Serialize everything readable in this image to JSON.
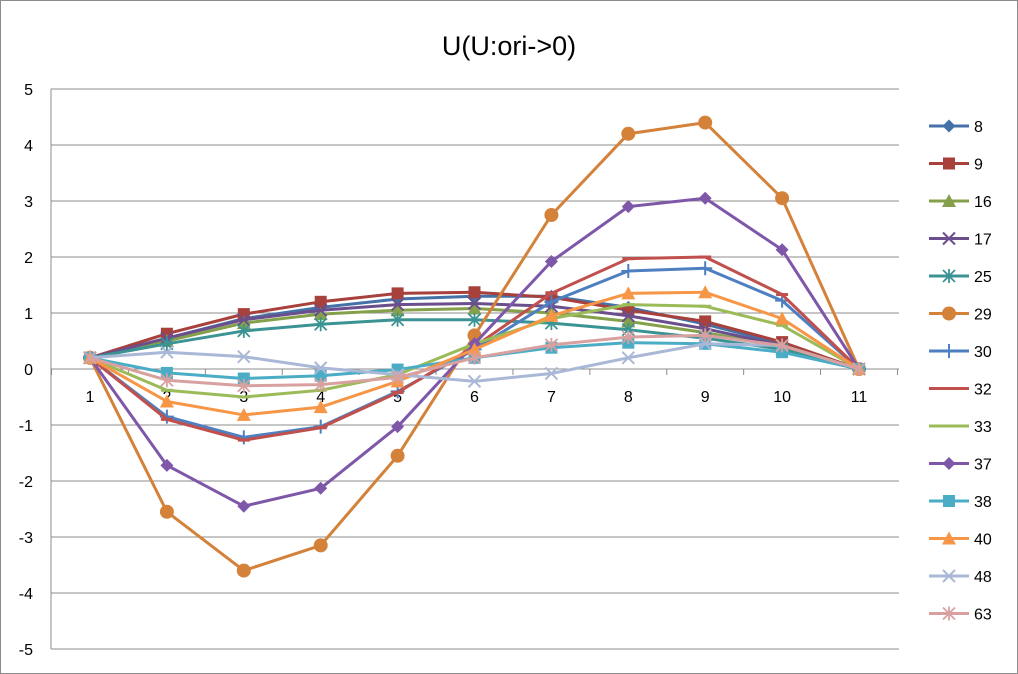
{
  "chart_data": {
    "type": "line",
    "title": "U(U:ori->0)",
    "xlabel": "",
    "ylabel": "",
    "x": [
      1,
      2,
      3,
      4,
      5,
      6,
      7,
      8,
      9,
      10,
      11
    ],
    "ylim": [
      -5,
      5
    ],
    "yticks": [
      -5,
      -4,
      -3,
      -2,
      -1,
      0,
      1,
      2,
      3,
      4,
      5
    ],
    "grid": "horizontal-major",
    "legend": "right",
    "series": [
      {
        "name": "8",
        "color": "#4472A8",
        "marker": "diamond",
        "values": [
          0.2,
          0.55,
          0.9,
          1.1,
          1.25,
          1.3,
          1.3,
          1.1,
          0.8,
          0.45,
          0.0
        ]
      },
      {
        "name": "9",
        "color": "#A8403C",
        "marker": "square",
        "values": [
          0.2,
          0.63,
          0.98,
          1.2,
          1.35,
          1.37,
          1.28,
          1.05,
          0.85,
          0.48,
          0.0
        ]
      },
      {
        "name": "16",
        "color": "#84A04A",
        "marker": "triangle",
        "values": [
          0.2,
          0.5,
          0.82,
          0.98,
          1.05,
          1.08,
          1.0,
          0.85,
          0.65,
          0.4,
          0.0
        ]
      },
      {
        "name": "17",
        "color": "#6B4E8C",
        "marker": "x",
        "values": [
          0.2,
          0.55,
          0.88,
          1.05,
          1.15,
          1.17,
          1.12,
          0.95,
          0.72,
          0.42,
          0.0
        ]
      },
      {
        "name": "25",
        "color": "#3B9394",
        "marker": "asterisk",
        "values": [
          0.2,
          0.45,
          0.68,
          0.8,
          0.88,
          0.88,
          0.82,
          0.7,
          0.55,
          0.35,
          0.0
        ]
      },
      {
        "name": "29",
        "color": "#D4813A",
        "marker": "circle",
        "values": [
          0.2,
          -2.55,
          -3.6,
          -3.15,
          -1.55,
          0.6,
          2.75,
          4.2,
          4.4,
          3.05,
          0.0
        ]
      },
      {
        "name": "30",
        "color": "#4E7FC0",
        "marker": "plus",
        "values": [
          0.2,
          -0.85,
          -1.22,
          -1.03,
          -0.4,
          0.35,
          1.2,
          1.75,
          1.8,
          1.22,
          0.0
        ]
      },
      {
        "name": "32",
        "color": "#C0504D",
        "marker": "dash",
        "values": [
          0.2,
          -0.9,
          -1.27,
          -1.05,
          -0.42,
          0.4,
          1.35,
          1.97,
          2.0,
          1.33,
          0.0
        ]
      },
      {
        "name": "33",
        "color": "#9BBB59",
        "marker": "dash",
        "values": [
          0.2,
          -0.38,
          -0.5,
          -0.38,
          -0.1,
          0.45,
          0.9,
          1.15,
          1.12,
          0.78,
          0.0
        ]
      },
      {
        "name": "37",
        "color": "#7E57A8",
        "marker": "diamond",
        "values": [
          0.2,
          -1.72,
          -2.45,
          -2.13,
          -1.03,
          0.45,
          1.92,
          2.9,
          3.05,
          2.13,
          0.0
        ]
      },
      {
        "name": "38",
        "color": "#4BACC6",
        "marker": "square",
        "values": [
          0.2,
          -0.07,
          -0.17,
          -0.12,
          -0.01,
          0.2,
          0.38,
          0.47,
          0.45,
          0.3,
          0.0
        ]
      },
      {
        "name": "40",
        "color": "#F79646",
        "marker": "triangle",
        "values": [
          0.2,
          -0.58,
          -0.82,
          -0.68,
          -0.22,
          0.35,
          0.95,
          1.35,
          1.37,
          0.9,
          0.0
        ]
      },
      {
        "name": "48",
        "color": "#A9B8D6",
        "marker": "x",
        "values": [
          0.2,
          0.3,
          0.22,
          0.02,
          -0.1,
          -0.22,
          -0.08,
          0.2,
          0.45,
          0.42,
          0.0
        ]
      },
      {
        "name": "63",
        "color": "#D9A0A0",
        "marker": "asterisk",
        "values": [
          0.2,
          -0.2,
          -0.3,
          -0.28,
          -0.15,
          0.2,
          0.43,
          0.57,
          0.6,
          0.42,
          0.0
        ]
      }
    ]
  }
}
